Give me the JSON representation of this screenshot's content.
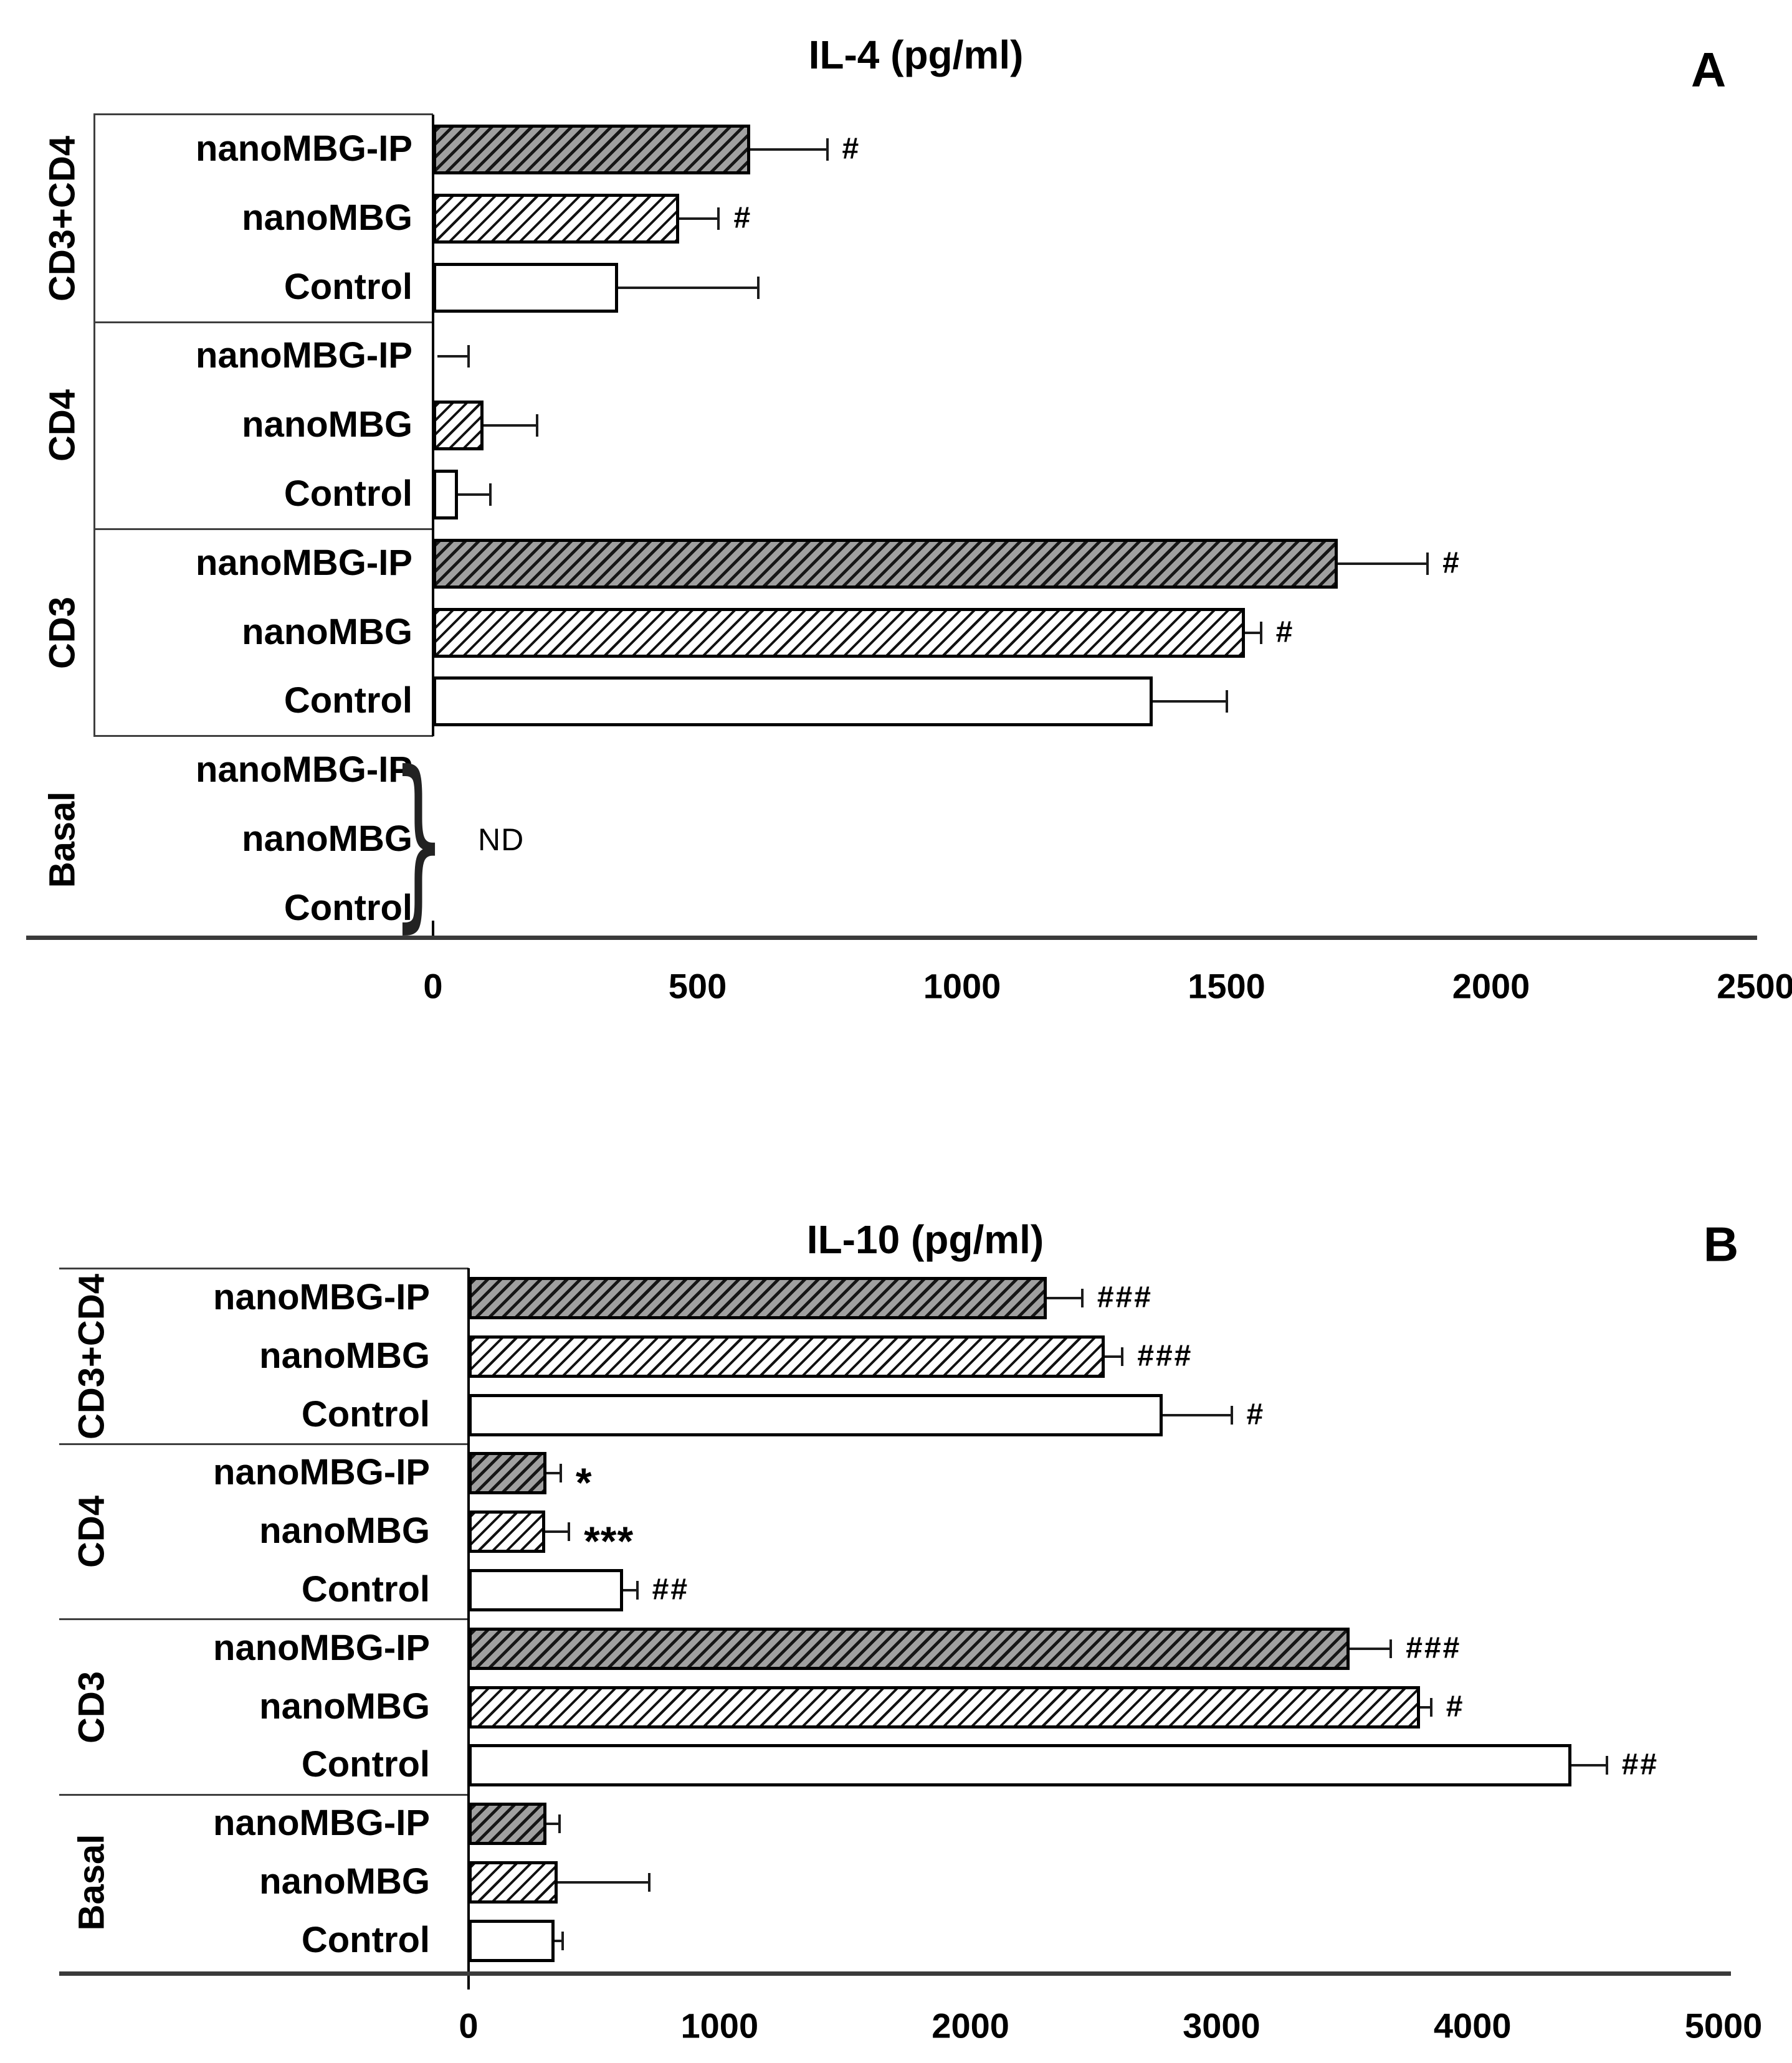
{
  "figure": {
    "background": "#ffffff"
  },
  "colors": {
    "bar_border": "#000000",
    "dark_bar_fill": "#a0a0a0",
    "hatch_line": "#111111",
    "axis_line": "#3a3a3a",
    "text": "#000000",
    "background": "#ffffff"
  },
  "chart_data": [
    {
      "type": "bar",
      "orientation": "horizontal",
      "panel_label": "A",
      "title": "IL-4 (pg/ml)",
      "value_unit": "pg/ml",
      "xlim": [
        0,
        2500
      ],
      "xticks": [
        0,
        500,
        1000,
        1500,
        2000,
        2500
      ],
      "grid": false,
      "legend_position": "none",
      "series_labels": [
        "nanoMBG-IP",
        "nanoMBG",
        "Control"
      ],
      "group_labels": [
        "CD3+CD4",
        "CD4",
        "CD3",
        "Basal"
      ],
      "patterns": {
        "nanoMBG-IP": "dark-gray-diagonal-hatch",
        "nanoMBG": "white-diagonal-hatch",
        "Control": "solid-white"
      },
      "rows": [
        {
          "group": "CD3+CD4",
          "condition": "nanoMBG-IP",
          "value": 600,
          "error_high": 745,
          "sig": "#"
        },
        {
          "group": "CD3+CD4",
          "condition": "nanoMBG",
          "value": 465,
          "error_high": 540,
          "sig": "#"
        },
        {
          "group": "CD3+CD4",
          "condition": "Control",
          "value": 350,
          "error_high": 615,
          "sig": ""
        },
        {
          "group": "CD4",
          "condition": "nanoMBG-IP",
          "value": 8,
          "error_high": 67,
          "sig": ""
        },
        {
          "group": "CD4",
          "condition": "nanoMBG",
          "value": 95,
          "error_high": 197,
          "sig": ""
        },
        {
          "group": "CD4",
          "condition": "Control",
          "value": 47,
          "error_high": 108,
          "sig": ""
        },
        {
          "group": "CD3",
          "condition": "nanoMBG-IP",
          "value": 1710,
          "error_high": 1880,
          "sig": "#"
        },
        {
          "group": "CD3",
          "condition": "nanoMBG",
          "value": 1535,
          "error_high": 1565,
          "sig": "#"
        },
        {
          "group": "CD3",
          "condition": "Control",
          "value": 1360,
          "error_high": 1500,
          "sig": ""
        },
        {
          "group": "Basal",
          "condition": "nanoMBG-IP",
          "value": null,
          "error_high": null,
          "sig": ""
        },
        {
          "group": "Basal",
          "condition": "nanoMBG",
          "value": null,
          "error_high": null,
          "sig": ""
        },
        {
          "group": "Basal",
          "condition": "Control",
          "value": null,
          "error_high": null,
          "sig": ""
        }
      ],
      "annotation": {
        "label": "ND",
        "applies_to": "Basal",
        "brace_glyph": "}"
      }
    },
    {
      "type": "bar",
      "orientation": "horizontal",
      "panel_label": "B",
      "title": "IL-10 (pg/ml)",
      "value_unit": "pg/ml",
      "xlim": [
        0,
        5000
      ],
      "xticks": [
        0,
        1000,
        2000,
        3000,
        4000,
        5000
      ],
      "grid": false,
      "legend_position": "none",
      "series_labels": [
        "nanoMBG-IP",
        "nanoMBG",
        "Control"
      ],
      "group_labels": [
        "CD3+CD4",
        "CD4",
        "CD3",
        "Basal"
      ],
      "patterns": {
        "nanoMBG-IP": "dark-gray-diagonal-hatch",
        "nanoMBG": "white-diagonal-hatch",
        "Control": "solid-white"
      },
      "rows": [
        {
          "group": "CD3+CD4",
          "condition": "nanoMBG-IP",
          "value": 2305,
          "error_high": 2445,
          "sig": "###"
        },
        {
          "group": "CD3+CD4",
          "condition": "nanoMBG",
          "value": 2535,
          "error_high": 2605,
          "sig": "###"
        },
        {
          "group": "CD3+CD4",
          "condition": "Control",
          "value": 2765,
          "error_high": 3040,
          "sig": "#"
        },
        {
          "group": "CD4",
          "condition": "nanoMBG-IP",
          "value": 310,
          "error_high": 367,
          "sig": "*"
        },
        {
          "group": "CD4",
          "condition": "nanoMBG",
          "value": 305,
          "error_high": 400,
          "sig": "***"
        },
        {
          "group": "CD4",
          "condition": "Control",
          "value": 615,
          "error_high": 672,
          "sig": "##"
        },
        {
          "group": "CD3",
          "condition": "nanoMBG-IP",
          "value": 3510,
          "error_high": 3675,
          "sig": "###"
        },
        {
          "group": "CD3",
          "condition": "nanoMBG",
          "value": 3790,
          "error_high": 3835,
          "sig": "#"
        },
        {
          "group": "CD3",
          "condition": "Control",
          "value": 4395,
          "error_high": 4535,
          "sig": "##"
        },
        {
          "group": "Basal",
          "condition": "nanoMBG-IP",
          "value": 310,
          "error_high": 362,
          "sig": ""
        },
        {
          "group": "Basal",
          "condition": "nanoMBG",
          "value": 355,
          "error_high": 720,
          "sig": ""
        },
        {
          "group": "Basal",
          "condition": "Control",
          "value": 342,
          "error_high": 374,
          "sig": ""
        }
      ],
      "annotation": null
    }
  ]
}
